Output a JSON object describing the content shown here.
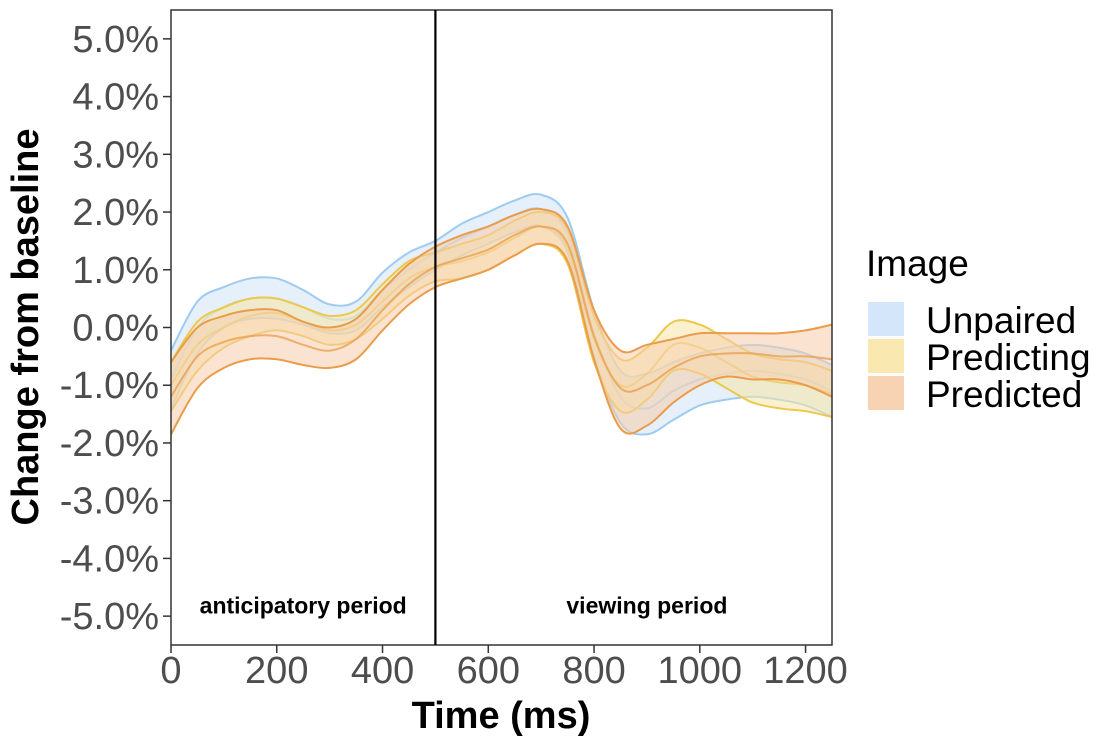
{
  "chart_data": {
    "type": "area",
    "title": "",
    "xlabel": "Time (ms)",
    "ylabel": "Change from baseline",
    "xlim": [
      0,
      1250
    ],
    "ylim": [
      -5.5,
      5.5
    ],
    "x_ticks": [
      0,
      200,
      400,
      600,
      800,
      1000,
      1200
    ],
    "x_tick_labels": [
      "0",
      "200",
      "400",
      "600",
      "800",
      "1000",
      "1200"
    ],
    "y_ticks": [
      5,
      4,
      3,
      2,
      1,
      0,
      -1,
      -2,
      -3,
      -4,
      -5
    ],
    "y_tick_labels": [
      "5.0%",
      "4.0%",
      "3.0%",
      "2.0%",
      "1.0%",
      "0.0%",
      "-1.0%",
      "-2.0%",
      "-3.0%",
      "-4.0%",
      "-5.0%"
    ],
    "vline_x": 500,
    "annotations": [
      {
        "text": "anticipatory period",
        "x": 250,
        "y": -4.95
      },
      {
        "text": "viewing period",
        "x": 900,
        "y": -4.95
      }
    ],
    "legend": {
      "title": "Image",
      "position": "right",
      "entries": [
        "Unpaired",
        "Predicting",
        "Predicted"
      ]
    },
    "x": [
      0,
      50,
      100,
      150,
      200,
      250,
      300,
      350,
      400,
      450,
      500,
      550,
      600,
      650,
      700,
      750,
      800,
      850,
      900,
      950,
      1000,
      1050,
      1100,
      1150,
      1200,
      1250
    ],
    "series": [
      {
        "name": "Unpaired",
        "fill": "#cfe3f8",
        "line": "#9fcbee",
        "mean": [
          -0.9,
          0.0,
          0.35,
          0.5,
          0.5,
          0.35,
          0.15,
          0.2,
          0.65,
          1.0,
          1.3,
          1.55,
          1.75,
          1.95,
          2.05,
          1.6,
          -0.1,
          -1.2,
          -1.4,
          -1.1,
          -0.9,
          -0.8,
          -0.75,
          -0.8,
          -0.9,
          -1.1
        ],
        "upper": [
          -0.4,
          0.45,
          0.7,
          0.85,
          0.85,
          0.65,
          0.4,
          0.45,
          0.95,
          1.3,
          1.5,
          1.8,
          2.0,
          2.2,
          2.3,
          1.9,
          0.3,
          -0.75,
          -0.8,
          -0.6,
          -0.45,
          -0.35,
          -0.3,
          -0.35,
          -0.45,
          -0.65
        ],
        "lower": [
          -1.4,
          -0.45,
          0.0,
          0.15,
          0.15,
          0.05,
          -0.1,
          -0.05,
          0.35,
          0.7,
          1.0,
          1.25,
          1.45,
          1.65,
          1.75,
          1.3,
          -0.5,
          -1.65,
          -1.85,
          -1.6,
          -1.35,
          -1.25,
          -1.2,
          -1.25,
          -1.35,
          -1.55
        ]
      },
      {
        "name": "Predicting",
        "fill": "#f9e6a8",
        "line": "#edc84e",
        "mean": [
          -1.0,
          -0.3,
          0.0,
          0.2,
          0.25,
          0.1,
          -0.05,
          0.05,
          0.45,
          0.85,
          1.05,
          1.15,
          1.3,
          1.55,
          1.75,
          1.4,
          -0.2,
          -1.0,
          -0.8,
          -0.3,
          -0.35,
          -0.6,
          -0.85,
          -0.95,
          -1.0,
          -1.15
        ],
        "upper": [
          -0.6,
          0.1,
          0.35,
          0.5,
          0.5,
          0.35,
          0.2,
          0.3,
          0.75,
          1.15,
          1.3,
          1.45,
          1.6,
          1.85,
          2.0,
          1.7,
          0.2,
          -0.55,
          -0.35,
          0.1,
          0.05,
          -0.2,
          -0.45,
          -0.55,
          -0.6,
          -0.75
        ],
        "lower": [
          -1.45,
          -0.75,
          -0.35,
          -0.15,
          -0.05,
          -0.15,
          -0.3,
          -0.2,
          0.15,
          0.55,
          0.8,
          0.85,
          1.0,
          1.25,
          1.45,
          1.1,
          -0.6,
          -1.45,
          -1.25,
          -0.75,
          -0.8,
          -1.05,
          -1.3,
          -1.4,
          -1.45,
          -1.55
        ]
      },
      {
        "name": "Predicted",
        "fill": "#f6ceab",
        "line": "#ea9c4a",
        "mean": [
          -1.2,
          -0.5,
          -0.25,
          -0.15,
          -0.15,
          -0.3,
          -0.4,
          -0.2,
          0.3,
          0.75,
          1.05,
          1.2,
          1.35,
          1.6,
          1.75,
          1.45,
          -0.15,
          -1.05,
          -1.0,
          -0.7,
          -0.5,
          -0.45,
          -0.45,
          -0.5,
          -0.5,
          -0.55
        ],
        "upper": [
          -0.6,
          0.0,
          0.2,
          0.3,
          0.3,
          0.1,
          0.0,
          0.15,
          0.65,
          1.1,
          1.4,
          1.6,
          1.75,
          1.95,
          2.05,
          1.75,
          0.3,
          -0.4,
          -0.3,
          -0.2,
          -0.1,
          -0.1,
          -0.1,
          -0.1,
          -0.05,
          0.05
        ],
        "lower": [
          -1.85,
          -1.05,
          -0.7,
          -0.55,
          -0.55,
          -0.65,
          -0.7,
          -0.55,
          -0.05,
          0.4,
          0.7,
          0.85,
          1.0,
          1.25,
          1.45,
          1.15,
          -0.55,
          -1.75,
          -1.7,
          -1.3,
          -1.0,
          -0.85,
          -0.9,
          -0.9,
          -1.0,
          -1.2
        ]
      }
    ]
  }
}
